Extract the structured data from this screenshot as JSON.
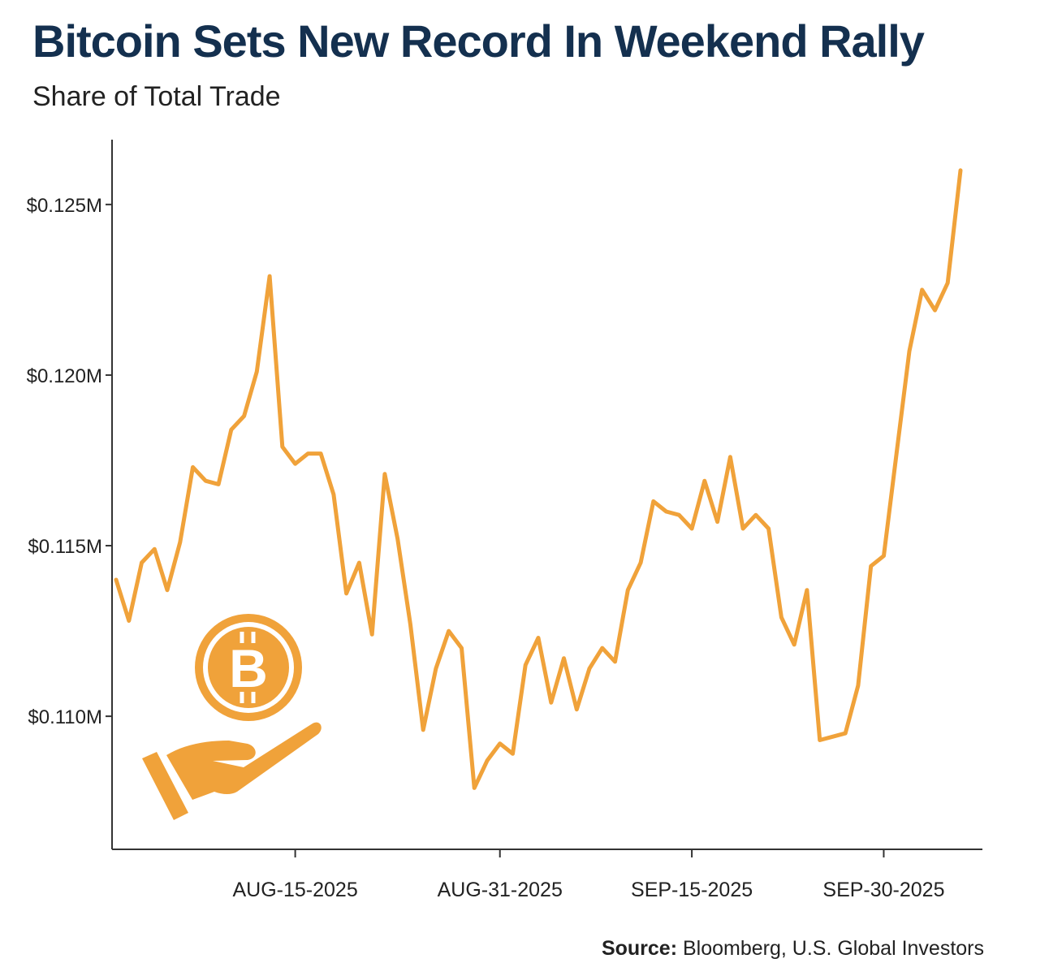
{
  "chart_data": {
    "type": "line",
    "title": "Bitcoin Sets New Record In Weekend Rally",
    "subtitle": "Share of Total Trade",
    "xlabel": "",
    "ylabel": "",
    "x_tick_labels": [
      "AUG-15-2025",
      "AUG-31-2025",
      "SEP-15-2025",
      "SEP-30-2025"
    ],
    "y_tick_labels": [
      "$0.125M",
      "$0.120M",
      "$0.115M",
      "$0.110M"
    ],
    "y_ticks": [
      125000,
      120000,
      115000,
      110000
    ],
    "ylim": [
      106100,
      126900
    ],
    "grid": false,
    "legend": "none",
    "series": [
      {
        "color": "#f0a23a",
        "x": [
          "2025-08-01",
          "2025-08-02",
          "2025-08-03",
          "2025-08-04",
          "2025-08-05",
          "2025-08-06",
          "2025-08-07",
          "2025-08-08",
          "2025-08-09",
          "2025-08-10",
          "2025-08-11",
          "2025-08-12",
          "2025-08-13",
          "2025-08-14",
          "2025-08-15",
          "2025-08-16",
          "2025-08-17",
          "2025-08-18",
          "2025-08-19",
          "2025-08-20",
          "2025-08-21",
          "2025-08-22",
          "2025-08-23",
          "2025-08-24",
          "2025-08-25",
          "2025-08-26",
          "2025-08-27",
          "2025-08-28",
          "2025-08-29",
          "2025-08-30",
          "2025-08-31",
          "2025-09-01",
          "2025-09-02",
          "2025-09-03",
          "2025-09-04",
          "2025-09-05",
          "2025-09-06",
          "2025-09-07",
          "2025-09-08",
          "2025-09-09",
          "2025-09-10",
          "2025-09-11",
          "2025-09-12",
          "2025-09-13",
          "2025-09-14",
          "2025-09-15",
          "2025-09-16",
          "2025-09-17",
          "2025-09-18",
          "2025-09-19",
          "2025-09-20",
          "2025-09-21",
          "2025-09-22",
          "2025-09-23",
          "2025-09-24",
          "2025-09-25",
          "2025-09-26",
          "2025-09-27",
          "2025-09-28",
          "2025-09-29",
          "2025-09-30",
          "2025-10-01",
          "2025-10-02",
          "2025-10-03",
          "2025-10-04",
          "2025-10-05",
          "2025-10-06"
        ],
        "values": [
          114000,
          112800,
          114500,
          114900,
          113700,
          115100,
          117300,
          116900,
          116800,
          118400,
          118800,
          120100,
          122900,
          117900,
          117400,
          117700,
          117700,
          116500,
          113600,
          114500,
          112400,
          117100,
          115200,
          112700,
          109600,
          111400,
          112500,
          112000,
          107900,
          108700,
          109200,
          108900,
          111500,
          112300,
          110400,
          111700,
          110200,
          111400,
          112000,
          111600,
          113700,
          114500,
          116300,
          116000,
          115900,
          115500,
          116900,
          115700,
          117600,
          115500,
          115900,
          115500,
          112900,
          112100,
          113700,
          109300,
          109400,
          109500,
          110900,
          114400,
          114700,
          117700,
          120700,
          122500,
          121900,
          122700,
          126000
        ]
      }
    ]
  },
  "source": {
    "label": "Source:",
    "text": "Bloomberg, U.S. Global Investors"
  },
  "icon": {
    "name": "bitcoin-in-hand-icon",
    "color": "#f0a23a",
    "symbol": "B"
  }
}
